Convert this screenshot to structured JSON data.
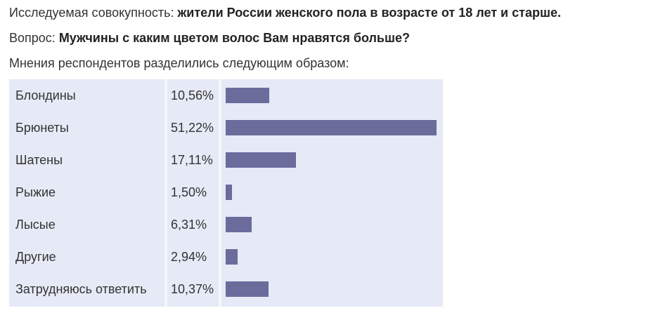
{
  "intro": {
    "population_label": "Исследуемая совокупность:",
    "population_value": "жители России женского пола в возрасте от 18 лет и старше.",
    "question_label": "Вопрос:",
    "question_value": "Мужчины с каким цветом волос Вам нравятся больше?",
    "results_label": "Мнения респондентов разделились следующим образом:"
  },
  "chart_data": {
    "type": "bar",
    "orientation": "horizontal",
    "title": "",
    "xlabel": "",
    "ylabel": "",
    "xlim": [
      0,
      51.22
    ],
    "grid": false,
    "legend": "none",
    "bar_color": "#6b6b9c",
    "categories": [
      "Блондины",
      "Брюнеты",
      "Шатены",
      "Рыжие",
      "Лысые",
      "Другие",
      "Затрудняюсь ответить"
    ],
    "values": [
      10.56,
      51.22,
      17.11,
      1.5,
      6.31,
      2.94,
      10.37
    ],
    "value_labels": [
      "10,56%",
      "51,22%",
      "17,11%",
      "1,50%",
      "6,31%",
      "2,94%",
      "10,37%"
    ]
  }
}
